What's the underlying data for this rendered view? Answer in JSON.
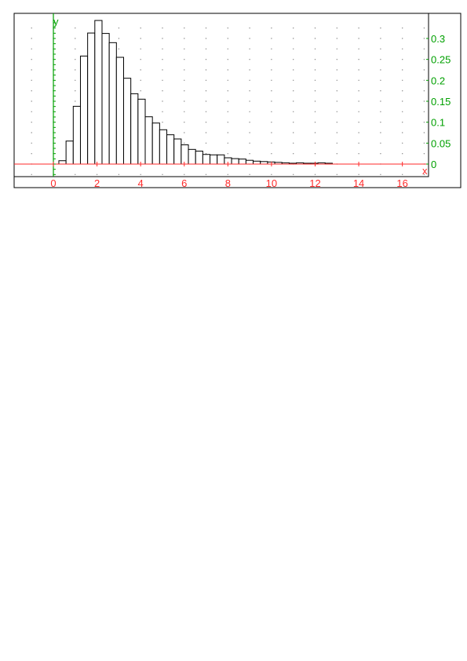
{
  "chart_data": {
    "type": "bar",
    "title": "",
    "xlabel": "x",
    "ylabel": "y",
    "xlim": [
      -1.8,
      17.2
    ],
    "ylim": [
      -0.03,
      0.36
    ],
    "grid": true,
    "xticks": [
      0,
      2,
      4,
      6,
      8,
      10,
      12,
      14,
      16
    ],
    "xtick_labels": [
      "0",
      "2",
      "4",
      "6",
      "8",
      "10",
      "12",
      "14",
      "16"
    ],
    "yticks": [
      0,
      0.05,
      0.1,
      0.15,
      0.2,
      0.25,
      0.3
    ],
    "ytick_labels": [
      "0",
      "0.05",
      "0.1",
      "0.15",
      "0.2",
      "0.25",
      "0.3"
    ],
    "bin_width": 0.33,
    "bins_start": [
      0.25,
      0.58,
      0.91,
      1.24,
      1.57,
      1.9,
      2.23,
      2.56,
      2.89,
      3.22,
      3.55,
      3.88,
      4.21,
      4.54,
      4.87,
      5.2,
      5.53,
      5.86,
      6.19,
      6.52,
      6.85,
      7.18,
      7.51,
      7.84,
      8.17,
      8.5,
      8.83,
      9.16,
      9.49,
      9.82,
      10.15,
      10.48,
      10.81,
      11.14,
      11.47,
      11.8,
      12.13,
      12.46
    ],
    "values": [
      0.008,
      0.055,
      0.138,
      0.258,
      0.313,
      0.343,
      0.312,
      0.29,
      0.255,
      0.205,
      0.168,
      0.155,
      0.113,
      0.098,
      0.082,
      0.07,
      0.06,
      0.046,
      0.035,
      0.031,
      0.023,
      0.022,
      0.022,
      0.015,
      0.013,
      0.012,
      0.009,
      0.007,
      0.006,
      0.005,
      0.004,
      0.003,
      0.002,
      0.003,
      0.002,
      0.002,
      0.003,
      0.002
    ],
    "colors": {
      "x_axis": "#ff2a2a",
      "y_axis": "#00a000",
      "x_tick_labels": "#ff2a2a",
      "y_tick_labels": "#00a000",
      "bars_stroke": "#000000",
      "grid_dots": "#888888",
      "frame": "#000000"
    }
  }
}
